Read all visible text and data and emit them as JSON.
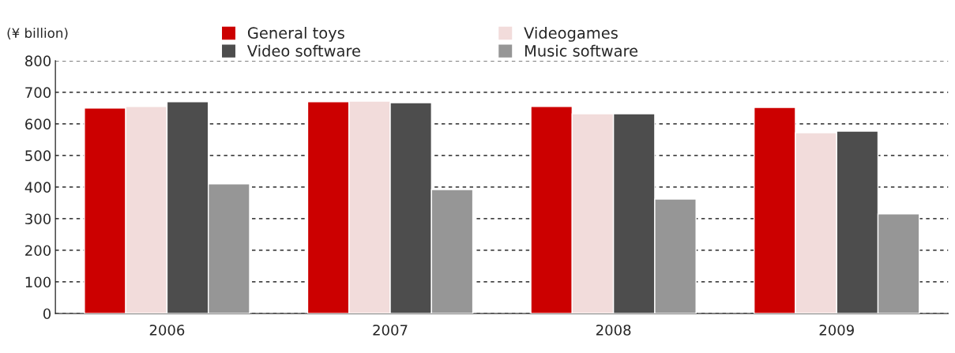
{
  "chart_data": {
    "type": "bar",
    "ylabel": "(¥ billion)",
    "categories": [
      "2006",
      "2007",
      "2008",
      "2009"
    ],
    "series": [
      {
        "name": "General toys",
        "color": "#cc0000",
        "values": [
          650,
          670,
          655,
          652
        ]
      },
      {
        "name": "Videogames",
        "color": "#f2dcdb",
        "values": [
          655,
          672,
          632,
          572
        ]
      },
      {
        "name": "Video software",
        "color": "#4d4d4d",
        "values": [
          670,
          667,
          632,
          577
        ]
      },
      {
        "name": "Music software",
        "color": "#969696",
        "values": [
          410,
          392,
          362,
          315
        ]
      }
    ],
    "ylim": [
      0,
      800
    ],
    "yticks": [
      0,
      100,
      200,
      300,
      400,
      500,
      600,
      700,
      800
    ],
    "grid": "y",
    "legend": "top"
  }
}
